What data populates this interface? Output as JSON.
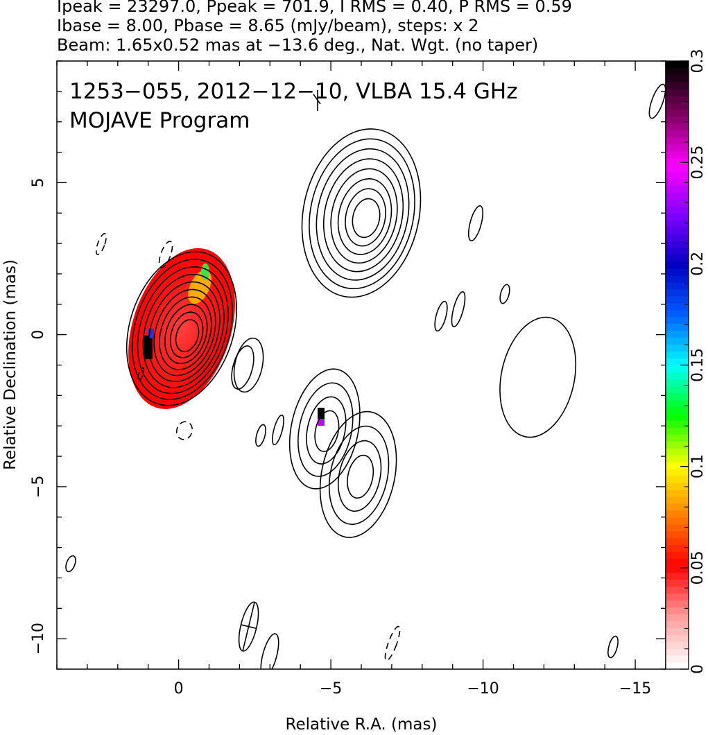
{
  "header": {
    "line1": "Ipeak = 23297.0, Ppeak = 701.9, I RMS = 0.40, P RMS = 0.59",
    "line2": "Ibase = 8.00, Pbase = 8.65 (mJy/beam), steps: x 2",
    "line3": "Beam: 1.65x0.52 mas at −13.6 deg., Nat. Wgt. (no taper)"
  },
  "annotations": {
    "source_line": "1253−055, 2012−12−10, VLBA 15.4 GHz",
    "program_line": "MOJAVE Program"
  },
  "chart_data": {
    "type": "heatmap",
    "xlabel": "Relative R.A. (mas)",
    "ylabel": "Relative Declination (mas)",
    "xlim": [
      4,
      -16
    ],
    "ylim": [
      -11,
      9
    ],
    "x_ticks": [
      0,
      -5,
      -10,
      -15
    ],
    "x_tick_labels": [
      "0",
      "−5",
      "−10",
      "−15"
    ],
    "y_ticks": [
      5,
      0,
      -5,
      -10
    ],
    "y_tick_labels": [
      "5",
      "0",
      "−5",
      "−10"
    ],
    "colorbar": {
      "range": [
        0,
        0.3
      ],
      "ticks": [
        0,
        0.05,
        0.1,
        0.15,
        0.2,
        0.25,
        0.3
      ],
      "tick_labels": [
        "0",
        "0.05",
        "0.1",
        "0.15",
        "0.2",
        "0.25",
        "0.3"
      ],
      "colormap": [
        "#ffffff",
        "#ff9a9a",
        "#ff0000",
        "#ff7f00",
        "#ffff00",
        "#00ff00",
        "#00ffff",
        "#0060ff",
        "#0000c0",
        "#8000ff",
        "#ff00ff",
        "#800060",
        "#000000"
      ]
    },
    "core": {
      "ra": -0.1,
      "dec": 0.2,
      "rx": 1.7,
      "ry": 2.6
    },
    "contour_levels": 10,
    "components": [
      {
        "ra": -6.0,
        "dec": 4.0,
        "rx": 1.9,
        "ry": 2.8,
        "levels": 8
      },
      {
        "ra": -4.8,
        "dec": -3.1,
        "rx": 1.1,
        "ry": 2.0,
        "levels": 4
      },
      {
        "ra": -5.9,
        "dec": -4.6,
        "rx": 1.2,
        "ry": 2.1,
        "levels": 4
      },
      {
        "ra": -11.8,
        "dec": -1.4,
        "rx": 1.2,
        "ry": 2.0,
        "levels": 1
      },
      {
        "ra": -2.3,
        "dec": -1.0,
        "rx": 0.45,
        "ry": 0.9,
        "levels": 1
      }
    ],
    "beam": {
      "ra": -2.3,
      "dec": -9.6,
      "major": 1.65,
      "minor": 0.52,
      "pa_deg": -13.6
    }
  }
}
